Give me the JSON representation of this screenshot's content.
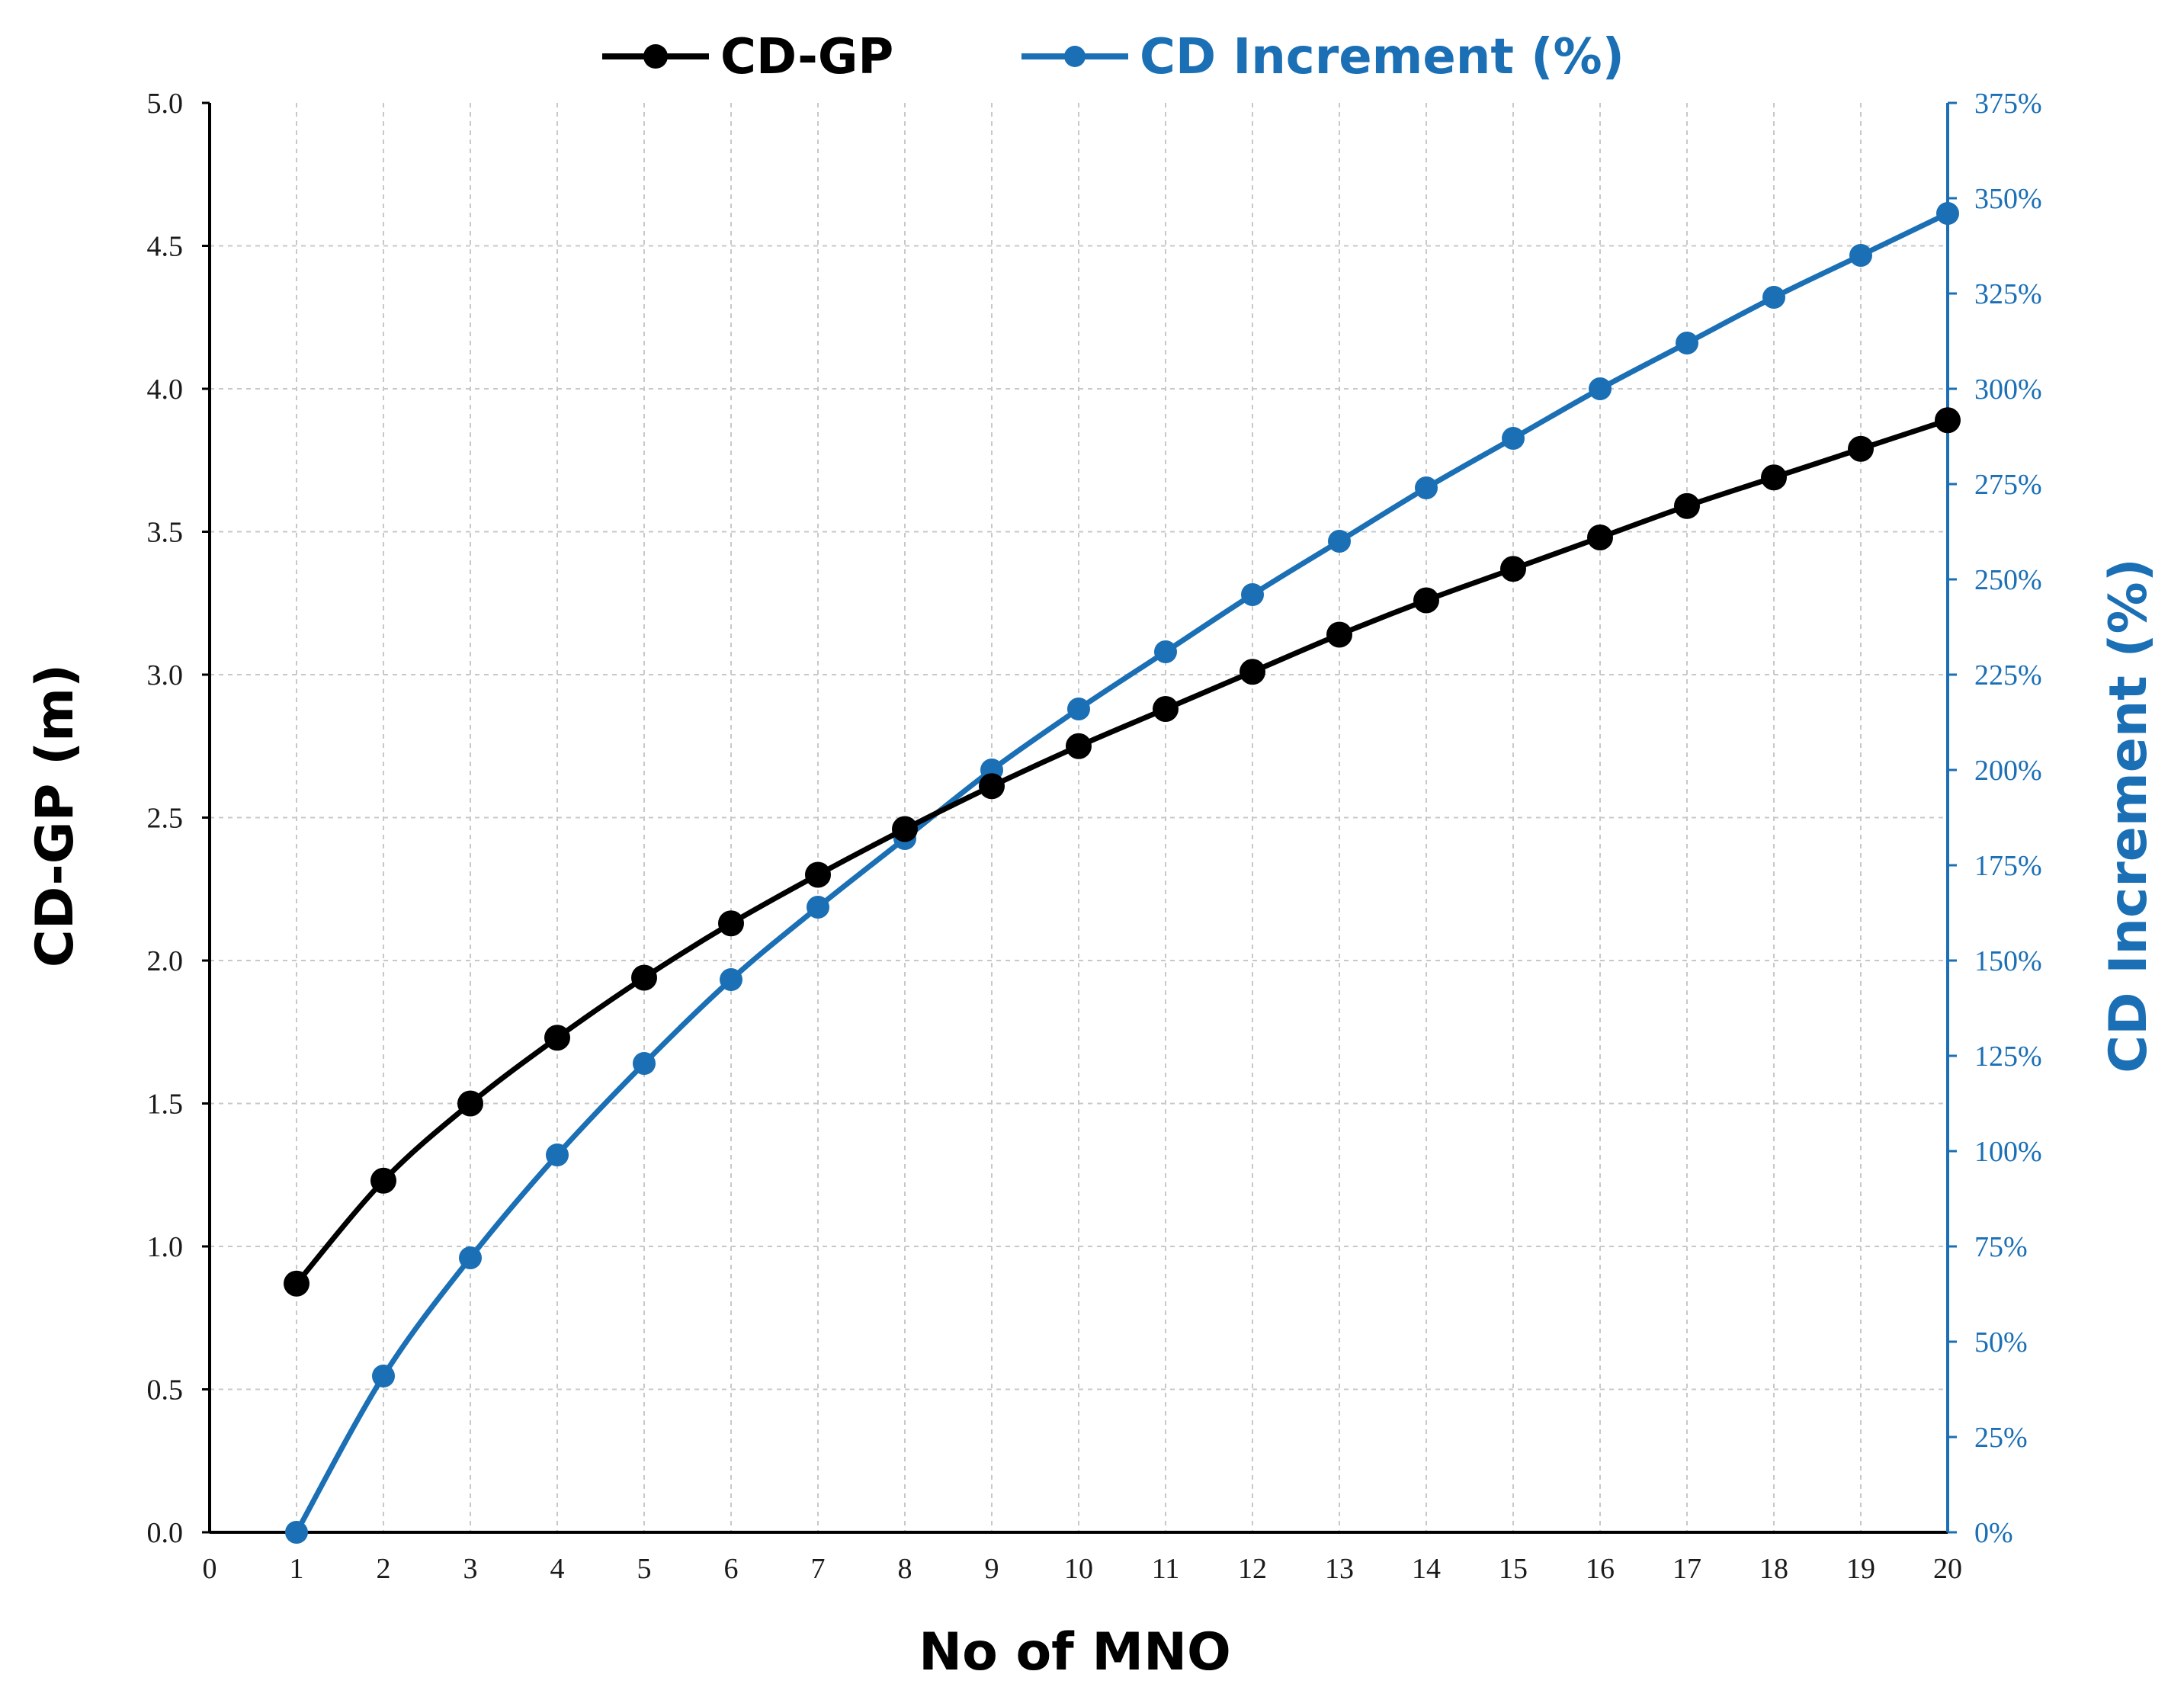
{
  "chart_data": {
    "type": "line",
    "title": "",
    "xlabel": "No of MNO",
    "ylabel": "CD-GP (m)",
    "y2label": "CD Increment (%)",
    "x": [
      1,
      2,
      3,
      4,
      5,
      6,
      7,
      8,
      9,
      10,
      11,
      12,
      13,
      14,
      15,
      16,
      17,
      18,
      19,
      20
    ],
    "xlim": [
      0,
      20
    ],
    "ylim": [
      0,
      5.0
    ],
    "y2lim": [
      0,
      375
    ],
    "xticks": [
      "0",
      "1",
      "2",
      "3",
      "4",
      "5",
      "6",
      "7",
      "8",
      "9",
      "10",
      "11",
      "12",
      "13",
      "14",
      "15",
      "16",
      "17",
      "18",
      "19",
      "20"
    ],
    "yticks": [
      "0.0",
      "0.5",
      "1.0",
      "1.5",
      "2.0",
      "2.5",
      "3.0",
      "3.5",
      "4.0",
      "4.5",
      "5.0"
    ],
    "y2ticks": [
      "0%",
      "25%",
      "50%",
      "75%",
      "100%",
      "125%",
      "150%",
      "175%",
      "200%",
      "225%",
      "250%",
      "275%",
      "300%",
      "325%",
      "350%",
      "375%"
    ],
    "grid": true,
    "legend_position": "top-center",
    "series": [
      {
        "name": "CD-GP",
        "axis": "left",
        "color": "#000000",
        "values": [
          0.87,
          1.23,
          1.5,
          1.73,
          1.94,
          2.13,
          2.3,
          2.46,
          2.61,
          2.75,
          2.88,
          3.01,
          3.14,
          3.26,
          3.37,
          3.48,
          3.59,
          3.69,
          3.79,
          3.89
        ]
      },
      {
        "name": "CD Increment (%)",
        "axis": "right",
        "color": "#1a6fb5",
        "values": [
          0,
          41,
          72,
          99,
          123,
          145,
          164,
          182,
          200,
          216,
          231,
          246,
          260,
          274,
          287,
          300,
          312,
          324,
          335,
          346
        ]
      }
    ]
  }
}
